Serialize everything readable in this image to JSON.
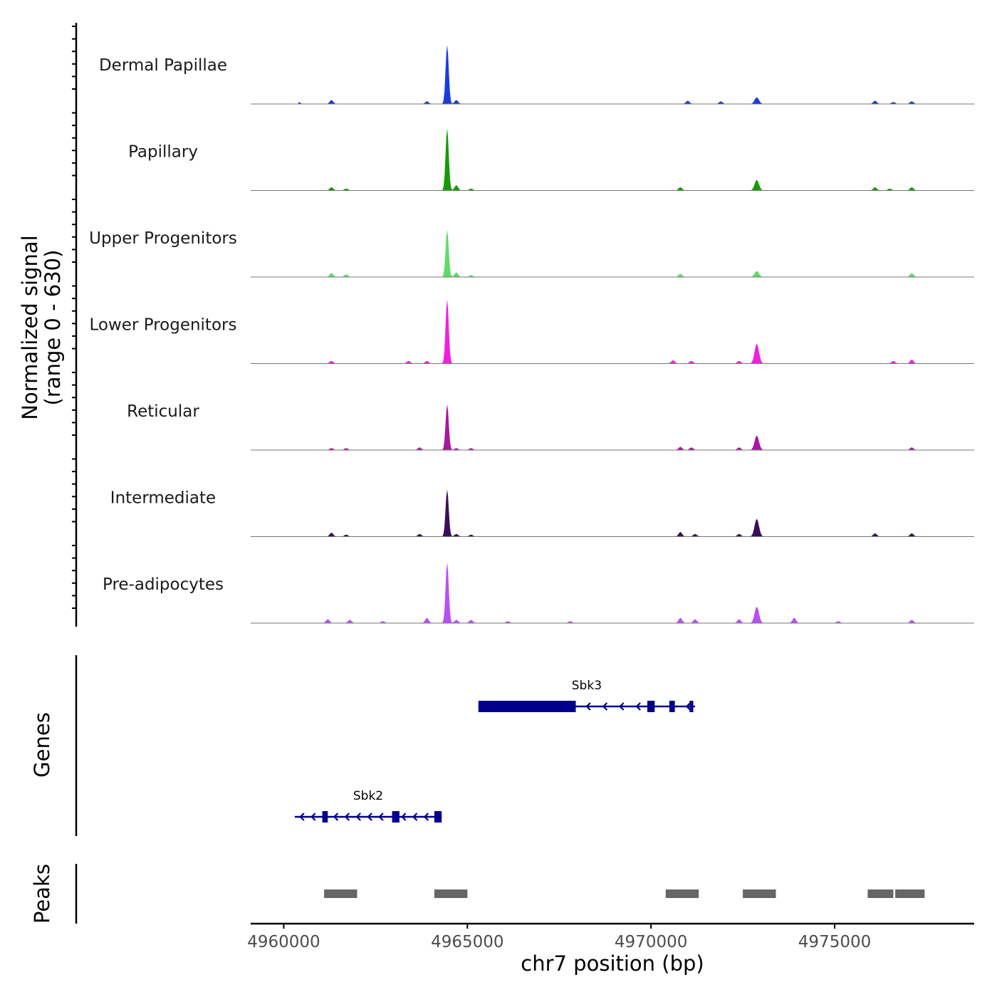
{
  "chart_data": {
    "type": "area",
    "title": "",
    "region": {
      "chrom": "chr7",
      "start": 4959100,
      "end": 4978800
    },
    "signal": {
      "ylabel_line1": "Normalized signal",
      "ylabel_line2": "(range 0 - 630)",
      "range": [
        0,
        630
      ],
      "peak_positions": [
        4964450,
        4972880
      ],
      "tracks": [
        {
          "name": "Dermal Papillae",
          "color": "#1a3de0",
          "main": 0.9,
          "second": 0.1,
          "minor": [
            [
              4960400,
              0.03
            ],
            [
              4961300,
              0.06
            ],
            [
              4963900,
              0.04
            ],
            [
              4964700,
              0.06
            ],
            [
              4971000,
              0.05
            ],
            [
              4971900,
              0.04
            ],
            [
              4976100,
              0.05
            ],
            [
              4976600,
              0.03
            ],
            [
              4977100,
              0.04
            ]
          ]
        },
        {
          "name": "Papillary",
          "color": "#169a08",
          "main": 0.95,
          "second": 0.16,
          "minor": [
            [
              4961300,
              0.05
            ],
            [
              4961700,
              0.03
            ],
            [
              4964700,
              0.08
            ],
            [
              4965100,
              0.03
            ],
            [
              4970800,
              0.05
            ],
            [
              4976100,
              0.05
            ],
            [
              4976500,
              0.03
            ],
            [
              4977100,
              0.05
            ]
          ]
        },
        {
          "name": "Upper Progenitors",
          "color": "#5edb6a",
          "main": 0.72,
          "second": 0.09,
          "minor": [
            [
              4961300,
              0.06
            ],
            [
              4961700,
              0.04
            ],
            [
              4964700,
              0.07
            ],
            [
              4965100,
              0.03
            ],
            [
              4970800,
              0.05
            ],
            [
              4977100,
              0.06
            ]
          ]
        },
        {
          "name": "Lower Progenitors",
          "color": "#f020e0",
          "main": 0.98,
          "second": 0.3,
          "minor": [
            [
              4961300,
              0.04
            ],
            [
              4963400,
              0.04
            ],
            [
              4963900,
              0.04
            ],
            [
              4970600,
              0.05
            ],
            [
              4971100,
              0.04
            ],
            [
              4972400,
              0.04
            ],
            [
              4976600,
              0.04
            ],
            [
              4977100,
              0.06
            ]
          ]
        },
        {
          "name": "Reticular",
          "color": "#a818a0",
          "main": 0.7,
          "second": 0.22,
          "minor": [
            [
              4961300,
              0.03
            ],
            [
              4961700,
              0.03
            ],
            [
              4963700,
              0.04
            ],
            [
              4964700,
              0.03
            ],
            [
              4965100,
              0.03
            ],
            [
              4970800,
              0.05
            ],
            [
              4971100,
              0.04
            ],
            [
              4972400,
              0.04
            ],
            [
              4977100,
              0.04
            ]
          ]
        },
        {
          "name": "Intermediate",
          "color": "#3b0e5c",
          "main": 0.72,
          "second": 0.27,
          "minor": [
            [
              4961300,
              0.06
            ],
            [
              4961700,
              0.03
            ],
            [
              4963700,
              0.04
            ],
            [
              4964700,
              0.04
            ],
            [
              4965100,
              0.03
            ],
            [
              4970800,
              0.07
            ],
            [
              4971200,
              0.04
            ],
            [
              4972400,
              0.04
            ],
            [
              4976100,
              0.05
            ],
            [
              4977100,
              0.05
            ]
          ]
        },
        {
          "name": "Pre-adipocytes",
          "color": "#bb50f2",
          "main": 0.93,
          "second": 0.25,
          "minor": [
            [
              4961200,
              0.06
            ],
            [
              4961800,
              0.05
            ],
            [
              4962700,
              0.03
            ],
            [
              4963900,
              0.08
            ],
            [
              4964700,
              0.05
            ],
            [
              4965100,
              0.05
            ],
            [
              4966100,
              0.03
            ],
            [
              4967800,
              0.03
            ],
            [
              4970800,
              0.08
            ],
            [
              4971200,
              0.06
            ],
            [
              4972400,
              0.06
            ],
            [
              4973900,
              0.08
            ],
            [
              4975100,
              0.03
            ],
            [
              4977100,
              0.05
            ]
          ]
        }
      ]
    },
    "genes": {
      "label": "Genes",
      "items": [
        {
          "name": "Sbk3",
          "strand": "-",
          "start": 4965300,
          "end": 4971200,
          "exons": [
            [
              4965300,
              4967950
            ],
            [
              4969900,
              4970100
            ],
            [
              4970500,
              4970650
            ],
            [
              4971050,
              4971150
            ]
          ]
        },
        {
          "name": "Sbk2",
          "strand": "-",
          "start": 4960300,
          "end": 4964300,
          "exons": [
            [
              4961050,
              4961200
            ],
            [
              4962950,
              4963150
            ],
            [
              4964100,
              4964300
            ]
          ]
        }
      ]
    },
    "peaks": {
      "label": "Peaks",
      "color": "#666666",
      "regions": [
        [
          4961100,
          4962000
        ],
        [
          4964100,
          4965000
        ],
        [
          4970400,
          4971300
        ],
        [
          4972500,
          4973400
        ],
        [
          4975900,
          4976600
        ],
        [
          4976650,
          4977450
        ]
      ]
    },
    "xaxis": {
      "label": "chr7 position (bp)",
      "ticks": [
        4960000,
        4965000,
        4970000,
        4975000
      ],
      "tick_labels": [
        "4960000",
        "4965000",
        "4970000",
        "4975000"
      ]
    }
  }
}
